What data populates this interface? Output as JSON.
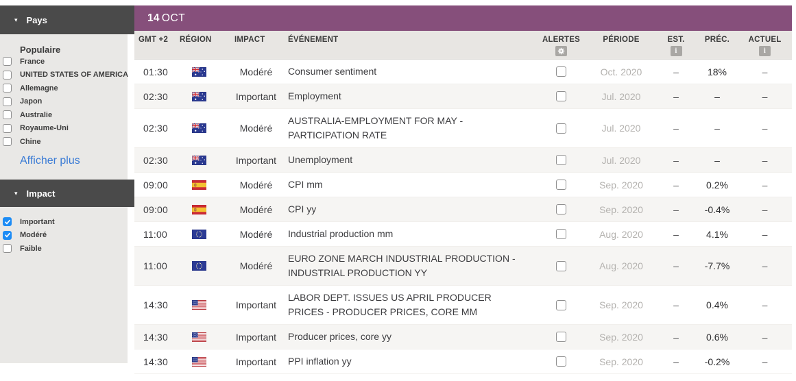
{
  "colors": {
    "accent_purple": "#864f7b",
    "header_dark": "#4a4a4a",
    "checkbox_blue": "#1d8cf5",
    "link_blue": "#3a7bd5",
    "sidebar_bg": "#e9e8e6",
    "row_alt_bg": "#f6f5f3"
  },
  "icons": {
    "caret_down": "▾",
    "info": "i",
    "gear": "gear-icon"
  },
  "sidebar": {
    "pays_title": "Pays",
    "populaire_label": "Populaire",
    "countries": [
      {
        "label": "France",
        "checked": false
      },
      {
        "label": "UNITED STATES OF AMERICA",
        "checked": false
      },
      {
        "label": "Allemagne",
        "checked": false
      },
      {
        "label": "Japon",
        "checked": false
      },
      {
        "label": "Australie",
        "checked": false
      },
      {
        "label": "Royaume-Uni",
        "checked": false
      },
      {
        "label": "Chine",
        "checked": false
      }
    ],
    "show_more": "Afficher plus",
    "impact_title": "Impact",
    "impact_options": [
      {
        "label": "Important",
        "checked": true
      },
      {
        "label": "Modéré",
        "checked": true
      },
      {
        "label": "Faible",
        "checked": false
      }
    ]
  },
  "table": {
    "date": {
      "day": "14",
      "month": "OCT"
    },
    "columns": [
      "GMT +2",
      "RÉGION",
      "IMPACT",
      "ÉVÉNEMENT",
      "ALERTES",
      "PÉRIODE",
      "EST.",
      "PRÉC.",
      "ACTUEL"
    ],
    "rows": [
      {
        "time": "01:30",
        "region": "australia",
        "impact": "Modéré",
        "event": "Consumer sentiment",
        "alert_checked": false,
        "period": "Oct. 2020",
        "est": "–",
        "prec": "18%",
        "actuel": "–"
      },
      {
        "time": "02:30",
        "region": "australia",
        "impact": "Important",
        "event": "Employment",
        "alert_checked": false,
        "period": "Jul. 2020",
        "est": "–",
        "prec": "–",
        "actuel": "–"
      },
      {
        "time": "02:30",
        "region": "australia",
        "impact": "Modéré",
        "event": "AUSTRALIA-EMPLOYMENT FOR MAY - PARTICIPATION RATE",
        "alert_checked": false,
        "period": "Jul. 2020",
        "est": "–",
        "prec": "–",
        "actuel": "–"
      },
      {
        "time": "02:30",
        "region": "australia",
        "impact": "Important",
        "event": "Unemployment",
        "alert_checked": false,
        "period": "Jul. 2020",
        "est": "–",
        "prec": "–",
        "actuel": "–"
      },
      {
        "time": "09:00",
        "region": "spain",
        "impact": "Modéré",
        "event": "CPI mm",
        "alert_checked": false,
        "period": "Sep. 2020",
        "est": "–",
        "prec": "0.2%",
        "actuel": "–"
      },
      {
        "time": "09:00",
        "region": "spain",
        "impact": "Modéré",
        "event": "CPI yy",
        "alert_checked": false,
        "period": "Sep. 2020",
        "est": "–",
        "prec": "-0.4%",
        "actuel": "–"
      },
      {
        "time": "11:00",
        "region": "european-union",
        "impact": "Modéré",
        "event": "Industrial production mm",
        "alert_checked": false,
        "period": "Aug. 2020",
        "est": "–",
        "prec": "4.1%",
        "actuel": "–"
      },
      {
        "time": "11:00",
        "region": "european-union",
        "impact": "Modéré",
        "event": "EURO ZONE MARCH INDUSTRIAL PRODUCTION - INDUSTRIAL PRODUCTION YY",
        "alert_checked": false,
        "period": "Aug. 2020",
        "est": "–",
        "prec": "-7.7%",
        "actuel": "–"
      },
      {
        "time": "14:30",
        "region": "usa",
        "impact": "Important",
        "event": "LABOR DEPT. ISSUES US APRIL PRODUCER PRICES - PRODUCER PRICES, CORE MM",
        "alert_checked": false,
        "period": "Sep. 2020",
        "est": "–",
        "prec": "0.4%",
        "actuel": "–"
      },
      {
        "time": "14:30",
        "region": "usa",
        "impact": "Important",
        "event": "Producer prices, core yy",
        "alert_checked": false,
        "period": "Sep. 2020",
        "est": "–",
        "prec": "0.6%",
        "actuel": "–"
      },
      {
        "time": "14:30",
        "region": "usa",
        "impact": "Important",
        "event": "PPI inflation yy",
        "alert_checked": false,
        "period": "Sep. 2020",
        "est": "–",
        "prec": "-0.2%",
        "actuel": "–"
      }
    ]
  }
}
